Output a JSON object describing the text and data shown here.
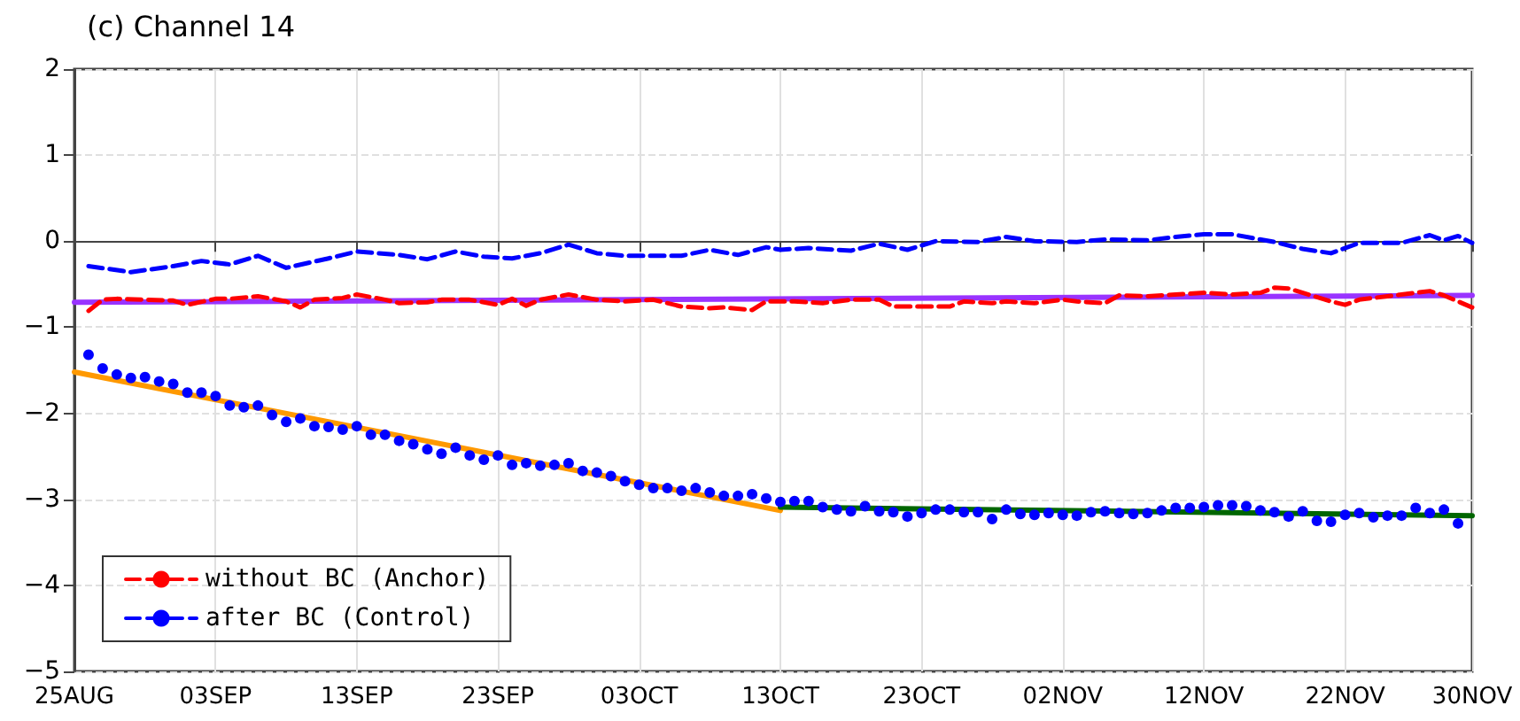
{
  "chart_data": {
    "type": "line",
    "title": "(c) Channel 14",
    "categories": [
      "25AUG",
      null,
      null,
      null,
      null,
      null,
      null,
      null,
      null,
      null,
      "03SEP",
      null,
      null,
      null,
      null,
      null,
      null,
      null,
      null,
      null,
      "13SEP",
      null,
      null,
      null,
      null,
      null,
      null,
      null,
      null,
      null,
      "23SEP",
      null,
      null,
      null,
      null,
      null,
      null,
      null,
      null,
      null,
      "03OCT",
      null,
      null,
      null,
      null,
      null,
      null,
      null,
      null,
      null,
      "13OCT",
      null,
      null,
      null,
      null,
      null,
      null,
      null,
      null,
      null,
      "23OCT",
      null,
      null,
      null,
      null,
      null,
      null,
      null,
      null,
      null,
      "02NOV",
      null,
      null,
      null,
      null,
      null,
      null,
      null,
      null,
      null,
      "12NOV",
      null,
      null,
      null,
      null,
      null,
      null,
      null,
      null,
      null,
      "22NOV",
      null,
      null,
      null,
      null,
      null,
      null,
      null,
      null,
      "30NOV"
    ],
    "ylim": [
      -5,
      2
    ],
    "yticks": [
      -5,
      -4,
      -3,
      -2,
      -1,
      0,
      1,
      2
    ],
    "grid": true,
    "legend": "bottom left",
    "series": [
      {
        "name": "without BC (Anchor)",
        "color": "#ff0000",
        "line_style": "dashed",
        "marker": "none",
        "values": [
          null,
          -0.81,
          -0.68,
          -0.67,
          null,
          -0.68,
          null,
          -0.69,
          -0.74,
          null,
          -0.67,
          -0.67,
          null,
          -0.64,
          null,
          -0.7,
          -0.77,
          -0.68,
          null,
          -0.66,
          -0.62,
          null,
          -0.68,
          -0.72,
          null,
          -0.71,
          -0.68,
          null,
          -0.68,
          null,
          -0.74,
          -0.67,
          -0.75,
          -0.68,
          null,
          -0.62,
          null,
          -0.68,
          null,
          -0.7,
          null,
          -0.68,
          null,
          -0.76,
          null,
          -0.78,
          -0.77,
          null,
          -0.8,
          -0.7,
          null,
          -0.7,
          null,
          -0.72,
          null,
          -0.68,
          null,
          -0.68,
          -0.76,
          null,
          -0.76,
          null,
          -0.76,
          -0.7,
          null,
          -0.72,
          -0.7,
          null,
          -0.72,
          null,
          -0.68,
          -0.7,
          null,
          -0.72,
          -0.63,
          null,
          -0.64,
          null,
          -0.62,
          null,
          -0.6,
          null,
          -0.62,
          null,
          -0.6,
          -0.54,
          -0.55,
          null,
          -0.65,
          -0.7,
          -0.74,
          -0.68,
          null,
          -0.64,
          -0.62,
          null,
          -0.58,
          -0.63,
          null,
          -0.77
        ]
      },
      {
        "name": "after BC (Control)",
        "color": "#0000ff",
        "line_style": "dashed",
        "marker": "none",
        "values": [
          null,
          -0.29,
          null,
          null,
          -0.36,
          null,
          null,
          -0.29,
          null,
          -0.23,
          null,
          -0.27,
          null,
          -0.17,
          null,
          -0.31,
          null,
          null,
          -0.2,
          null,
          -0.12,
          null,
          null,
          -0.16,
          null,
          -0.21,
          null,
          -0.12,
          null,
          -0.18,
          null,
          -0.2,
          null,
          -0.14,
          null,
          -0.04,
          null,
          -0.14,
          null,
          -0.17,
          null,
          null,
          null,
          -0.17,
          null,
          -0.1,
          null,
          -0.16,
          null,
          -0.07,
          -0.1,
          null,
          -0.08,
          null,
          null,
          -0.11,
          null,
          -0.03,
          null,
          -0.1,
          null,
          0.0,
          null,
          null,
          -0.01,
          null,
          0.05,
          null,
          0.0,
          null,
          null,
          -0.01,
          null,
          0.02,
          null,
          null,
          0.01,
          null,
          0.05,
          null,
          0.08,
          null,
          0.08,
          null,
          null,
          -0.01,
          null,
          -0.09,
          null,
          -0.14,
          null,
          -0.02,
          null,
          null,
          -0.02,
          null,
          0.07,
          0.01,
          0.06,
          -0.02
        ]
      },
      {
        "color": "#9933ff",
        "line_style": "solid",
        "marker": "none",
        "values": [
          -0.71,
          null,
          null,
          null,
          null,
          null,
          null,
          null,
          null,
          null,
          null,
          null,
          null,
          null,
          null,
          null,
          null,
          null,
          null,
          null,
          null,
          null,
          null,
          null,
          null,
          null,
          null,
          null,
          null,
          null,
          null,
          null,
          null,
          null,
          null,
          null,
          null,
          null,
          null,
          null,
          null,
          null,
          null,
          null,
          null,
          null,
          null,
          null,
          null,
          null,
          null,
          null,
          null,
          null,
          null,
          null,
          null,
          null,
          null,
          null,
          null,
          null,
          null,
          null,
          null,
          null,
          null,
          null,
          null,
          null,
          null,
          null,
          null,
          null,
          null,
          null,
          null,
          null,
          null,
          null,
          null,
          null,
          null,
          null,
          null,
          null,
          null,
          null,
          null,
          null,
          null,
          null,
          null,
          null,
          null,
          null,
          null,
          null,
          null,
          -0.63
        ]
      },
      {
        "color": "#ff9900",
        "line_style": "solid",
        "marker": "none",
        "values": [
          -1.52,
          null,
          null,
          null,
          null,
          null,
          null,
          null,
          null,
          null,
          null,
          null,
          null,
          null,
          null,
          null,
          null,
          null,
          null,
          null,
          null,
          null,
          null,
          null,
          null,
          null,
          null,
          null,
          null,
          null,
          null,
          null,
          null,
          null,
          null,
          null,
          null,
          null,
          null,
          null,
          null,
          null,
          null,
          null,
          null,
          null,
          null,
          null,
          null,
          null,
          -3.13,
          null,
          null,
          null,
          null,
          null,
          null,
          null,
          null,
          null,
          null,
          null,
          null,
          null,
          null,
          null,
          null,
          null,
          null,
          null,
          null,
          null,
          null,
          null,
          null,
          null,
          null,
          null,
          null,
          null,
          null,
          null,
          null,
          null,
          null,
          null,
          null,
          null,
          null,
          null,
          null,
          null,
          null,
          null,
          null,
          null,
          null,
          null,
          null,
          null
        ]
      },
      {
        "color": "#006600",
        "line_style": "solid",
        "marker": "none",
        "values": [
          null,
          null,
          null,
          null,
          null,
          null,
          null,
          null,
          null,
          null,
          null,
          null,
          null,
          null,
          null,
          null,
          null,
          null,
          null,
          null,
          null,
          null,
          null,
          null,
          null,
          null,
          null,
          null,
          null,
          null,
          null,
          null,
          null,
          null,
          null,
          null,
          null,
          null,
          null,
          null,
          null,
          null,
          null,
          null,
          null,
          null,
          null,
          null,
          null,
          null,
          -3.09,
          null,
          null,
          null,
          null,
          null,
          null,
          null,
          null,
          null,
          null,
          null,
          null,
          null,
          null,
          null,
          null,
          null,
          null,
          null,
          null,
          null,
          null,
          null,
          null,
          null,
          null,
          null,
          null,
          null,
          null,
          null,
          null,
          null,
          null,
          null,
          null,
          null,
          null,
          null,
          null,
          null,
          null,
          null,
          null,
          null,
          null,
          null,
          null,
          -3.19
        ]
      },
      {
        "type": "scatter",
        "color": "#0000ff",
        "marker": "circle",
        "values": [
          null,
          -1.32,
          -1.48,
          -1.55,
          -1.59,
          -1.58,
          -1.63,
          -1.66,
          -1.76,
          -1.76,
          -1.8,
          -1.91,
          -1.93,
          -1.91,
          -2.02,
          -2.1,
          -2.06,
          -2.15,
          -2.16,
          -2.19,
          -2.15,
          -2.25,
          -2.25,
          -2.32,
          -2.36,
          -2.42,
          -2.47,
          -2.4,
          -2.49,
          -2.54,
          -2.49,
          -2.6,
          -2.58,
          -2.61,
          -2.6,
          -2.58,
          -2.67,
          -2.69,
          -2.73,
          -2.79,
          -2.83,
          -2.87,
          -2.87,
          -2.9,
          -2.87,
          -2.92,
          -2.96,
          -2.96,
          -2.94,
          -2.99,
          -3.03,
          -3.02,
          -3.02,
          -3.09,
          -3.12,
          -3.14,
          -3.08,
          -3.14,
          -3.15,
          -3.2,
          -3.16,
          -3.12,
          -3.12,
          -3.15,
          -3.15,
          -3.23,
          -3.12,
          -3.17,
          -3.18,
          -3.16,
          -3.18,
          -3.19,
          -3.15,
          -3.14,
          -3.16,
          -3.17,
          -3.16,
          -3.13,
          -3.1,
          -3.1,
          -3.09,
          -3.07,
          -3.07,
          -3.08,
          -3.13,
          -3.15,
          -3.2,
          -3.14,
          -3.25,
          -3.26,
          -3.18,
          -3.16,
          -3.21,
          -3.19,
          -3.19,
          -3.1,
          -3.16,
          -3.12,
          -3.28,
          null
        ]
      }
    ]
  }
}
